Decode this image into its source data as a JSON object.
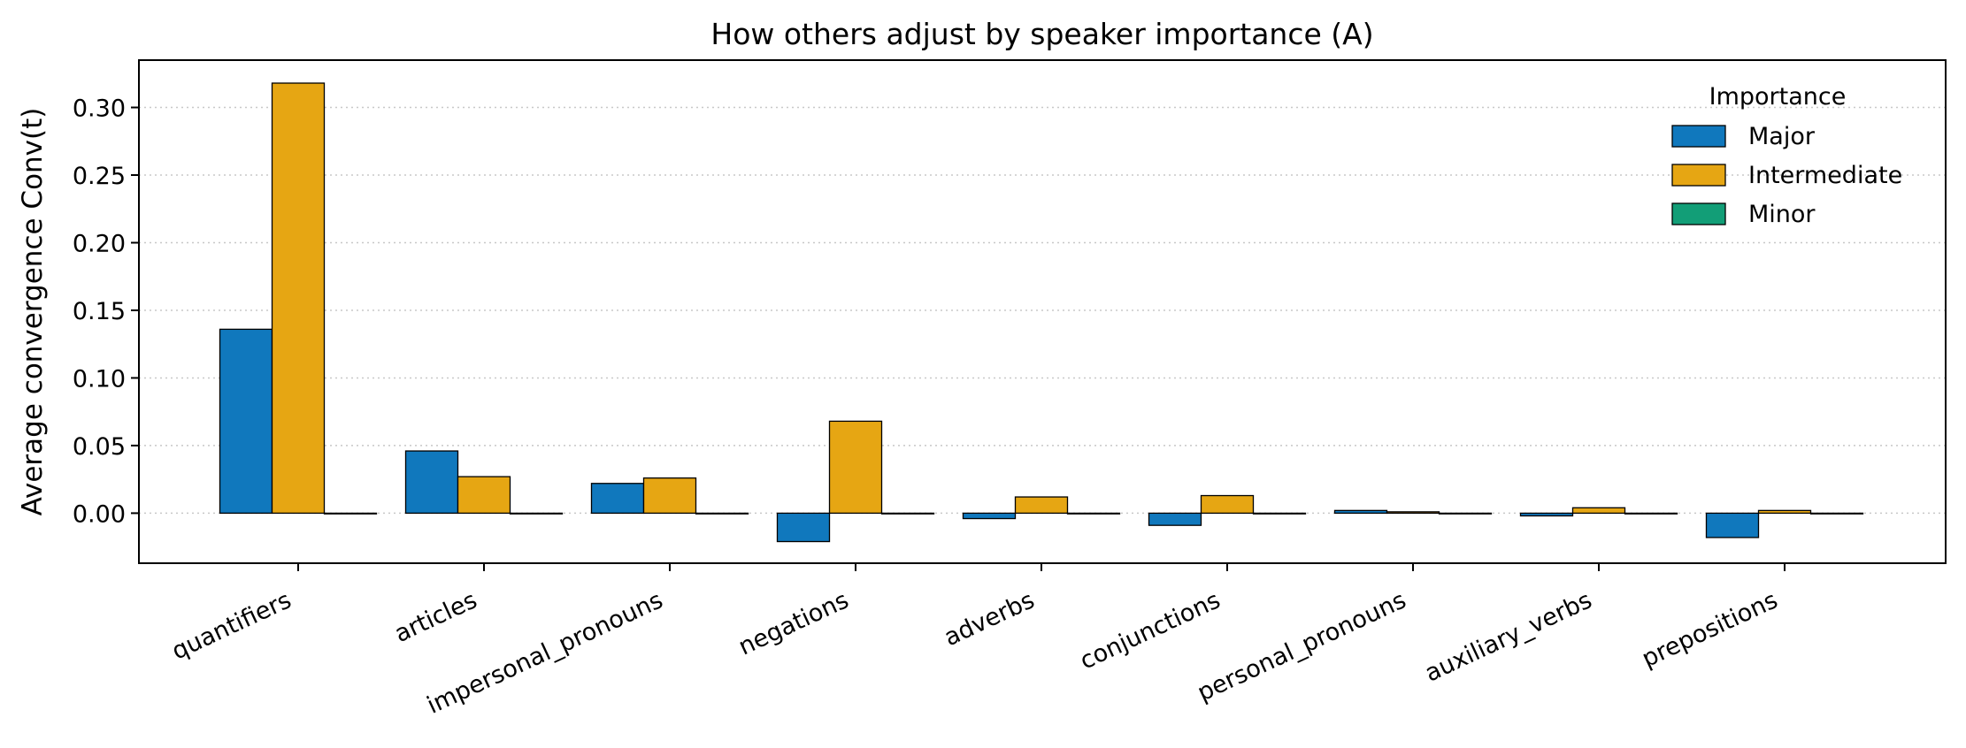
{
  "chart_data": {
    "type": "bar",
    "title": "How others adjust by speaker importance (A)",
    "xlabel": "",
    "ylabel": "Average convergence  Conv(t)",
    "ylim": [
      -0.037,
      0.335
    ],
    "yticks": [
      0.0,
      0.05,
      0.1,
      0.15,
      0.2,
      0.25,
      0.3
    ],
    "ytick_labels": [
      "0.00",
      "0.05",
      "0.10",
      "0.15",
      "0.20",
      "0.25",
      "0.30"
    ],
    "grid": "horizontal dotted",
    "categories": [
      "quantifiers",
      "articles",
      "impersonal_pronouns",
      "negations",
      "adverbs",
      "conjunctions",
      "personal_pronouns",
      "auxiliary_verbs",
      "prepositions"
    ],
    "legend": {
      "title": "Importance",
      "placement": "top-right"
    },
    "series": [
      {
        "name": "Major",
        "color": "#1078bd",
        "values": [
          0.136,
          0.046,
          0.022,
          -0.021,
          -0.004,
          -0.009,
          0.002,
          -0.002,
          -0.018
        ]
      },
      {
        "name": "Intermediate",
        "color": "#e6a613",
        "values": [
          0.318,
          0.027,
          0.026,
          0.068,
          0.012,
          0.013,
          0.001,
          0.004,
          0.002
        ]
      },
      {
        "name": "Minor",
        "color": "#129e77",
        "values": [
          0,
          0,
          0,
          0,
          0,
          0,
          0,
          0,
          0
        ]
      }
    ]
  }
}
